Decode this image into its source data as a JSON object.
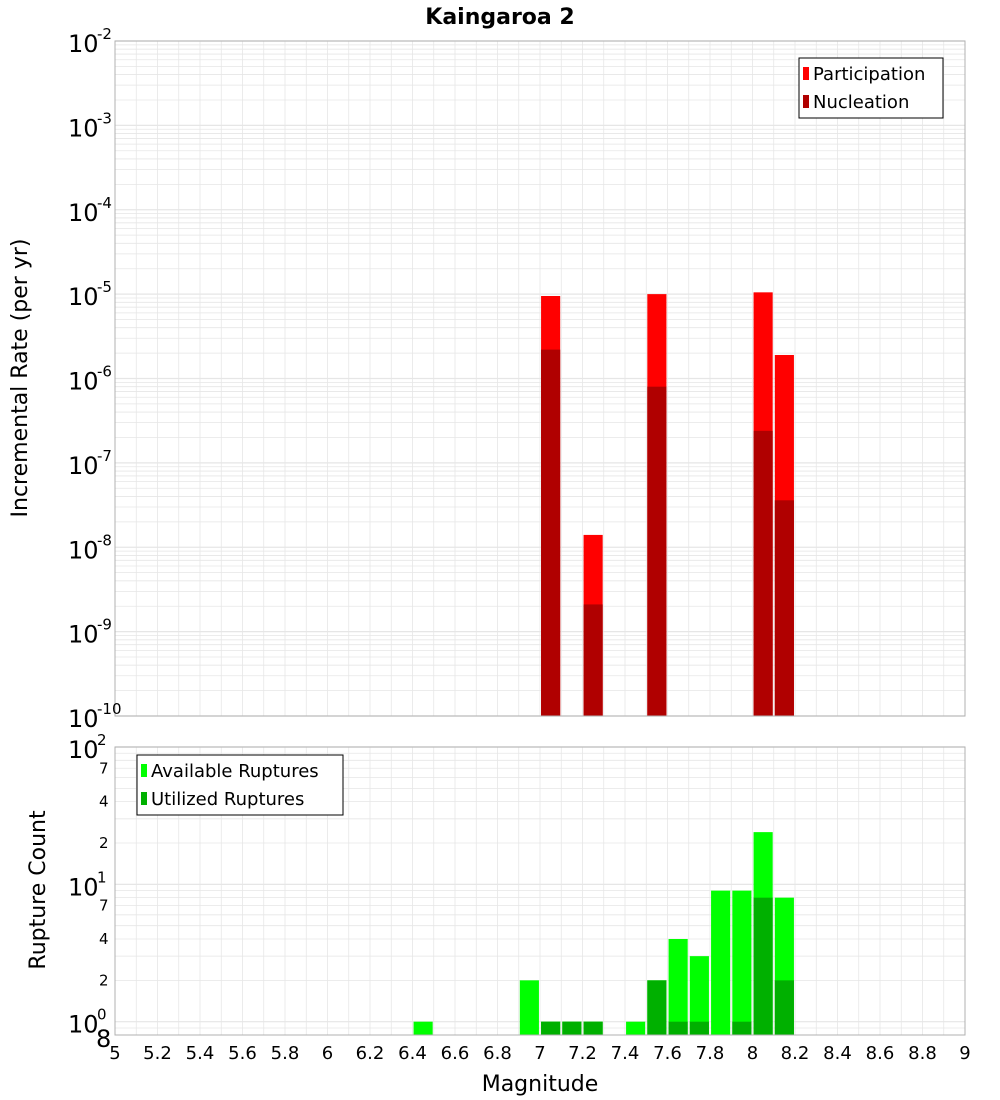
{
  "title": "Kaingaroa 2",
  "xlabel": "Magnitude",
  "x_ticks": [
    "5",
    "5.2",
    "5.4",
    "5.6",
    "5.8",
    "6",
    "6.2",
    "6.4",
    "6.6",
    "6.8",
    "7",
    "7.2",
    "7.4",
    "7.6",
    "7.8",
    "8",
    "8.2",
    "8.4",
    "8.6",
    "8.8",
    "9"
  ],
  "colors": {
    "participation": "#ff0000",
    "nucleation": "#b00000",
    "available": "#00ff00",
    "utilized": "#00b000",
    "grid": "#e6e6e6",
    "frame": "#b0b0b0"
  },
  "chart_data": [
    {
      "type": "bar",
      "ylabel": "Incremental Rate (per yr)",
      "yscale": "log",
      "ylim": [
        1e-10,
        0.01
      ],
      "xlim": [
        5,
        9
      ],
      "y_tick_labels": [
        {
          "base": "10",
          "exp": "-10",
          "value": 1e-10
        },
        {
          "base": "10",
          "exp": "-9",
          "value": 1e-09
        },
        {
          "base": "10",
          "exp": "-8",
          "value": 1e-08
        },
        {
          "base": "10",
          "exp": "-7",
          "value": 1e-07
        },
        {
          "base": "10",
          "exp": "-6",
          "value": 1e-06
        },
        {
          "base": "10",
          "exp": "-5",
          "value": 1e-05
        },
        {
          "base": "10",
          "exp": "-4",
          "value": 0.0001
        },
        {
          "base": "10",
          "exp": "-3",
          "value": 0.001
        },
        {
          "base": "10",
          "exp": "-2",
          "value": 0.01
        }
      ],
      "legend": {
        "position": "top-right",
        "entries": [
          "Participation",
          "Nucleation"
        ]
      },
      "series": [
        {
          "name": "Participation",
          "x": [
            7.05,
            7.25,
            7.55,
            8.05,
            8.15
          ],
          "values": [
            9.5e-06,
            1.4e-08,
            1e-05,
            1.05e-05,
            1.9e-06
          ]
        },
        {
          "name": "Nucleation",
          "x": [
            7.05,
            7.25,
            7.55,
            8.05,
            8.15
          ],
          "values": [
            2.2e-06,
            2.1e-09,
            8e-07,
            2.4e-07,
            3.6e-08
          ]
        }
      ]
    },
    {
      "type": "bar",
      "ylabel": "Rupture Count",
      "yscale": "log",
      "ylim": [
        0.8,
        100
      ],
      "xlim": [
        5,
        9
      ],
      "y_tick_labels": [
        {
          "base": "",
          "exp": "",
          "minor": "8",
          "value": 0.8
        },
        {
          "base": "10",
          "exp": "0",
          "value": 1
        },
        {
          "base": "",
          "exp": "",
          "minor": "2",
          "value": 2
        },
        {
          "base": "",
          "exp": "",
          "minor": "4",
          "value": 4
        },
        {
          "base": "",
          "exp": "",
          "minor": "7",
          "value": 7
        },
        {
          "base": "10",
          "exp": "1",
          "value": 10
        },
        {
          "base": "",
          "exp": "",
          "minor": "2",
          "value": 20
        },
        {
          "base": "",
          "exp": "",
          "minor": "4",
          "value": 40
        },
        {
          "base": "",
          "exp": "",
          "minor": "7",
          "value": 70
        },
        {
          "base": "10",
          "exp": "2",
          "value": 100
        }
      ],
      "legend": {
        "position": "top-left",
        "entries": [
          "Available Ruptures",
          "Utilized Ruptures"
        ]
      },
      "series": [
        {
          "name": "Available Ruptures",
          "x": [
            6.45,
            6.95,
            7.05,
            7.15,
            7.25,
            7.45,
            7.55,
            7.65,
            7.75,
            7.85,
            7.95,
            8.05,
            8.15
          ],
          "values": [
            1,
            2,
            1,
            1,
            1,
            1,
            2,
            4,
            3,
            9,
            9,
            24,
            8
          ]
        },
        {
          "name": "Utilized Ruptures",
          "x": [
            6.45,
            6.95,
            7.05,
            7.15,
            7.25,
            7.45,
            7.55,
            7.65,
            7.75,
            7.85,
            7.95,
            8.05,
            8.15
          ],
          "values": [
            0,
            0,
            1,
            1,
            1,
            0,
            2,
            1,
            1,
            0,
            1,
            8,
            2
          ]
        }
      ]
    }
  ]
}
